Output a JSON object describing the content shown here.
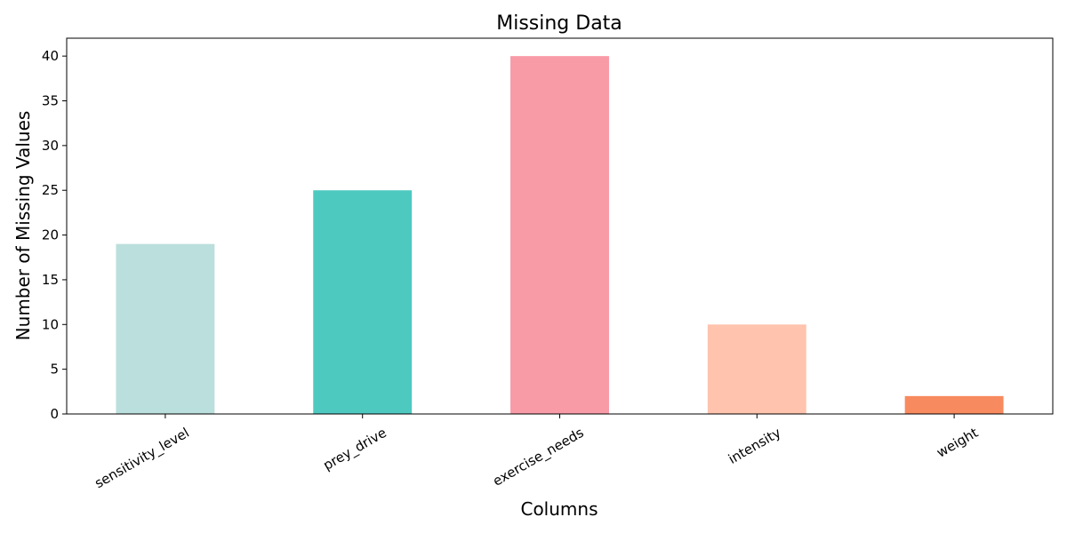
{
  "chart_data": {
    "type": "bar",
    "title": "Missing Data",
    "xlabel": "Columns",
    "ylabel": "Number of Missing Values",
    "categories": [
      "sensitivity_level",
      "prey_drive",
      "exercise_needs",
      "intensity",
      "weight"
    ],
    "values": [
      19,
      25,
      40,
      10,
      2
    ],
    "colors": [
      "#bbdfdc",
      "#4ec9c0",
      "#f99aa7",
      "#ffc3ae",
      "#f88a5f"
    ],
    "ylim": [
      0,
      42
    ],
    "yticks": [
      0,
      5,
      10,
      15,
      20,
      25,
      30,
      35,
      40
    ],
    "grid": false,
    "legend": false
  }
}
